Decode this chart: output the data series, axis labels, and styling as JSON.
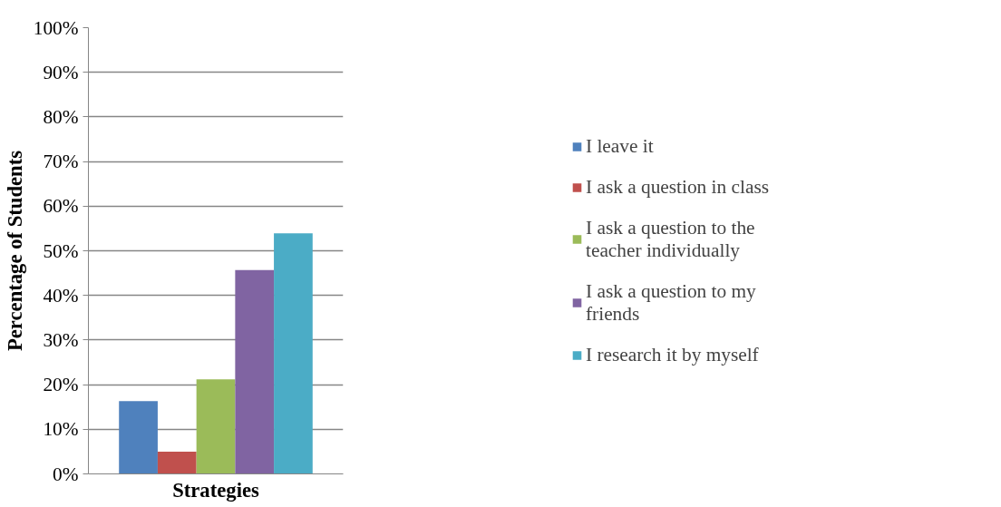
{
  "chart_data": {
    "type": "bar",
    "xlabel": "Strategies",
    "ylabel": "Percentage of Students",
    "categories": [
      null
    ],
    "series": [
      {
        "name": "I leave it",
        "color": "#4f81bd",
        "values": [
          16.3
        ]
      },
      {
        "name": "I ask a question in class",
        "color": "#c0504d",
        "values": [
          5.0
        ]
      },
      {
        "name": "I ask a question to the teacher individually",
        "color": "#9bbb59",
        "values": [
          21.2
        ]
      },
      {
        "name": "I ask a question to my friends",
        "color": "#8064a2",
        "values": [
          45.7
        ]
      },
      {
        "name": "I research it by myself",
        "color": "#4bacc6",
        "values": [
          53.9
        ]
      }
    ],
    "ylim": [
      0,
      100
    ],
    "yticks": [
      {
        "value": 0,
        "label": "0%"
      },
      {
        "value": 10,
        "label": "10%"
      },
      {
        "value": 20,
        "label": "20%"
      },
      {
        "value": 30,
        "label": "30%"
      },
      {
        "value": 40,
        "label": "40%"
      },
      {
        "value": 50,
        "label": "50%"
      },
      {
        "value": 60,
        "label": "60%"
      },
      {
        "value": 70,
        "label": "70%"
      },
      {
        "value": 80,
        "label": "80%"
      },
      {
        "value": 90,
        "label": "90%"
      },
      {
        "value": 100,
        "label": "100%"
      }
    ],
    "grid": "y",
    "legend": "right"
  }
}
